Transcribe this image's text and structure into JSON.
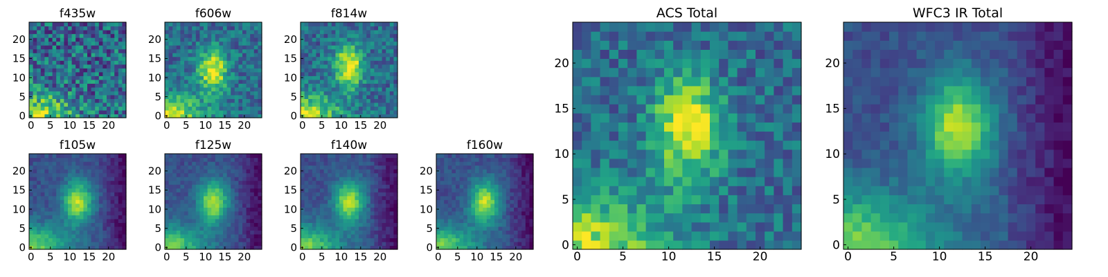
{
  "figure": {
    "description": "Grid of 2D image cutouts (heatmaps) for HST filters and totals",
    "colormap": "viridis"
  },
  "chart_data": [
    {
      "type": "heatmap",
      "title": "f435w",
      "xlim": [
        0,
        24
      ],
      "ylim": [
        0,
        24
      ],
      "xticks": [
        0,
        5,
        10,
        15,
        20
      ],
      "yticks": [
        0,
        5,
        10,
        15,
        20
      ],
      "grid": false,
      "source_center": null,
      "noise": "high",
      "gradient_corner": "bottom-left"
    },
    {
      "type": "heatmap",
      "title": "f606w",
      "xlim": [
        0,
        24
      ],
      "ylim": [
        0,
        24
      ],
      "xticks": [
        0,
        5,
        10,
        15,
        20
      ],
      "yticks": [
        0,
        5,
        10,
        15,
        20
      ],
      "grid": false,
      "source_center": [
        12,
        12
      ],
      "noise": "medium",
      "gradient_corner": "bottom-left"
    },
    {
      "type": "heatmap",
      "title": "f814w",
      "xlim": [
        0,
        24
      ],
      "ylim": [
        0,
        24
      ],
      "xticks": [
        0,
        5,
        10,
        15,
        20
      ],
      "yticks": [
        0,
        5,
        10,
        15,
        20
      ],
      "grid": false,
      "source_center": [
        12,
        13
      ],
      "noise": "medium",
      "gradient_corner": "bottom-left"
    },
    {
      "type": "heatmap",
      "title": "f105w",
      "xlim": [
        0,
        24
      ],
      "ylim": [
        0,
        24
      ],
      "xticks": [
        0,
        5,
        10,
        15,
        20
      ],
      "yticks": [
        0,
        5,
        10,
        15,
        20
      ],
      "grid": false,
      "source_center": [
        12,
        12
      ],
      "noise": "low",
      "gradient_corner": "bottom-left"
    },
    {
      "type": "heatmap",
      "title": "f125w",
      "xlim": [
        0,
        24
      ],
      "ylim": [
        0,
        24
      ],
      "xticks": [
        0,
        5,
        10,
        15,
        20
      ],
      "yticks": [
        0,
        5,
        10,
        15,
        20
      ],
      "grid": false,
      "source_center": [
        12,
        12
      ],
      "noise": "low",
      "gradient_corner": "bottom-left"
    },
    {
      "type": "heatmap",
      "title": "f140w",
      "xlim": [
        0,
        24
      ],
      "ylim": [
        0,
        24
      ],
      "xticks": [
        0,
        5,
        10,
        15,
        20
      ],
      "yticks": [
        0,
        5,
        10,
        15,
        20
      ],
      "grid": false,
      "source_center": [
        12,
        12
      ],
      "noise": "low",
      "gradient_corner": "bottom-left"
    },
    {
      "type": "heatmap",
      "title": "f160w",
      "xlim": [
        0,
        24
      ],
      "ylim": [
        0,
        24
      ],
      "xticks": [
        0,
        5,
        10,
        15,
        20
      ],
      "yticks": [
        0,
        5,
        10,
        15,
        20
      ],
      "grid": false,
      "source_center": [
        12,
        12
      ],
      "noise": "low",
      "gradient_corner": "bottom-left"
    },
    {
      "type": "heatmap",
      "title": "ACS Total",
      "xlim": [
        0,
        24
      ],
      "ylim": [
        0,
        24
      ],
      "xticks": [
        0,
        5,
        10,
        15,
        20
      ],
      "yticks": [
        0,
        5,
        10,
        15,
        20
      ],
      "grid": false,
      "source_center": [
        12,
        13
      ],
      "noise": "medium",
      "gradient_corner": "bottom-left"
    },
    {
      "type": "heatmap",
      "title": "WFC3 IR Total",
      "xlim": [
        0,
        24
      ],
      "ylim": [
        0,
        24
      ],
      "xticks": [
        0,
        5,
        10,
        15,
        20
      ],
      "yticks": [
        0,
        5,
        10,
        15,
        20
      ],
      "grid": false,
      "source_center": [
        12,
        13
      ],
      "noise": "low",
      "gradient_corner": "bottom-left"
    }
  ]
}
